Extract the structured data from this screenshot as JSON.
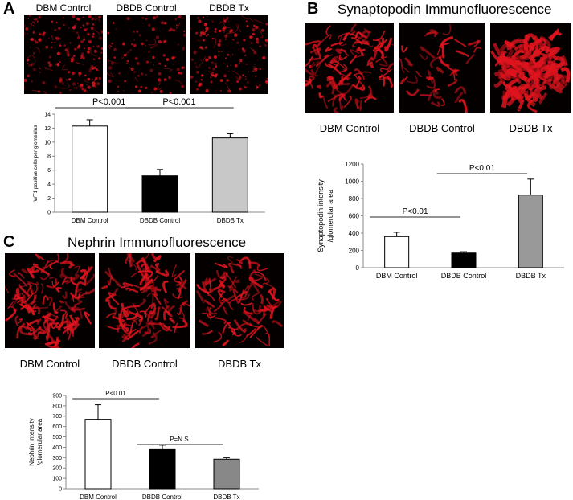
{
  "panelA": {
    "letter": "A",
    "image_labels": [
      "DBM Control",
      "DBDB Control",
      "DBDB Tx"
    ]
  },
  "panelB": {
    "letter": "B",
    "title": "Synaptopodin Immunofluorescence",
    "image_labels": [
      "DBM Control",
      "DBDB Control",
      "DBDB Tx"
    ]
  },
  "panelC": {
    "letter": "C",
    "title": "Nephrin Immunofluorescence",
    "image_labels": [
      "DBM Control",
      "DBDB Control",
      "DBDB Tx"
    ]
  },
  "colors": {
    "stain_red": "#e0141e",
    "background_black": "#050000",
    "bar_white": "#ffffff",
    "bar_black": "#000000",
    "bar_light_gray": "#c8c8c8",
    "bar_gray": "#999999"
  },
  "chart_data": [
    {
      "id": "A",
      "type": "bar",
      "categories": [
        "DBM Control",
        "DBDB Control",
        "DBDB Tx"
      ],
      "values": [
        12.3,
        5.2,
        10.6
      ],
      "errors": [
        0.9,
        0.9,
        0.6
      ],
      "bar_colors": [
        "#ffffff",
        "#000000",
        "#c8c8c8"
      ],
      "ylabel": "WT1 positive cells per glomeulus",
      "ylim": [
        0,
        14
      ],
      "yticks": [
        0,
        2,
        4,
        6,
        8,
        10,
        12,
        14
      ],
      "significance": [
        {
          "from": 0,
          "to": 1,
          "label": "P<0.001"
        },
        {
          "from": 1,
          "to": 2,
          "label": "P<0.001"
        }
      ]
    },
    {
      "id": "B",
      "type": "bar",
      "categories": [
        "DBM Control",
        "DBDB Control",
        "DBDB Tx"
      ],
      "values": [
        360,
        170,
        840
      ],
      "errors": [
        50,
        15,
        185
      ],
      "bar_colors": [
        "#ffffff",
        "#000000",
        "#999999"
      ],
      "ylabel_lines": [
        "Synaptopodin intensity",
        "/glomerular area"
      ],
      "ylim": [
        0,
        1200
      ],
      "yticks": [
        0,
        200,
        400,
        600,
        800,
        1000,
        1200
      ],
      "significance": [
        {
          "from": 0,
          "to": 1,
          "label": "P<0.01"
        },
        {
          "from": 1,
          "to": 2,
          "label": "P<0.01"
        }
      ]
    },
    {
      "id": "C",
      "type": "bar",
      "categories": [
        "DBM Control",
        "DBDB Control",
        "DBDB Tx"
      ],
      "values": [
        670,
        385,
        285
      ],
      "errors": [
        140,
        35,
        15
      ],
      "bar_colors": [
        "#ffffff",
        "#000000",
        "#888888"
      ],
      "ylabel_lines": [
        "Nephrin intensity",
        "/glomerular area"
      ],
      "ylim": [
        0,
        900
      ],
      "yticks": [
        0,
        100,
        200,
        300,
        400,
        500,
        600,
        700,
        800,
        900
      ],
      "significance": [
        {
          "from": 0,
          "to": 1,
          "label": "P<0.01"
        },
        {
          "from": 1,
          "to": 2,
          "label": "P=N.S."
        }
      ]
    }
  ]
}
